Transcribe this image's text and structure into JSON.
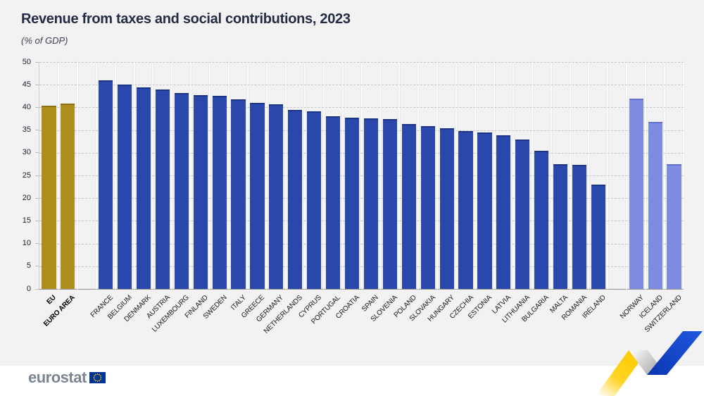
{
  "chart_data": {
    "type": "bar",
    "title": "Revenue from taxes and social contributions, 2023",
    "unit_label": "(% of GDP)",
    "xlabel": "",
    "ylabel": "",
    "ylim": [
      0,
      50
    ],
    "yticks": [
      0,
      5,
      10,
      15,
      20,
      25,
      30,
      35,
      40,
      45,
      50
    ],
    "grid": "horizontal-dashed",
    "legend": "none",
    "groups": [
      {
        "name": "eu-aggregates",
        "color_key": "eu_aggregate",
        "bold_labels": true,
        "categories": [
          "EU",
          "EURO AREA"
        ],
        "values": [
          40.0,
          40.6
        ],
        "bars": [
          {
            "label": "EU",
            "value": 40.0
          },
          {
            "label": "EURO AREA",
            "value": 40.6
          }
        ]
      },
      {
        "name": "eu-members",
        "color_key": "eu_member",
        "bold_labels": false,
        "categories": [
          "FRANCE",
          "BELGIUM",
          "DENMARK",
          "AUSTRIA",
          "LUXEMBOURG",
          "FINLAND",
          "SWEDEN",
          "ITALY",
          "GREECE",
          "GERMANY",
          "NETHERLANDS",
          "CYPRUS",
          "PORTUGAL",
          "CROATIA",
          "SPAIN",
          "SLOVENIA",
          "POLAND",
          "SLOVAKIA",
          "HUNGARY",
          "CZECHIA",
          "ESTONIA",
          "LATVIA",
          "LITHUANIA",
          "BULGARIA",
          "MALTA",
          "ROMANIA",
          "IRELAND"
        ],
        "values": [
          45.6,
          44.8,
          44.1,
          43.6,
          42.8,
          42.4,
          42.2,
          41.5,
          40.7,
          40.3,
          39.2,
          38.8,
          37.8,
          37.4,
          37.3,
          37.1,
          36.1,
          35.6,
          35.1,
          34.4,
          34.2,
          33.6,
          32.6,
          30.1,
          27.1,
          27.0,
          22.7
        ],
        "bars": [
          {
            "label": "FRANCE",
            "value": 45.6
          },
          {
            "label": "BELGIUM",
            "value": 44.8
          },
          {
            "label": "DENMARK",
            "value": 44.1
          },
          {
            "label": "AUSTRIA",
            "value": 43.6
          },
          {
            "label": "LUXEMBOURG",
            "value": 42.8
          },
          {
            "label": "FINLAND",
            "value": 42.4
          },
          {
            "label": "SWEDEN",
            "value": 42.2
          },
          {
            "label": "ITALY",
            "value": 41.5
          },
          {
            "label": "GREECE",
            "value": 40.7
          },
          {
            "label": "GERMANY",
            "value": 40.3
          },
          {
            "label": "NETHERLANDS",
            "value": 39.2
          },
          {
            "label": "CYPRUS",
            "value": 38.8
          },
          {
            "label": "PORTUGAL",
            "value": 37.8
          },
          {
            "label": "CROATIA",
            "value": 37.4
          },
          {
            "label": "SPAIN",
            "value": 37.3
          },
          {
            "label": "SLOVENIA",
            "value": 37.1
          },
          {
            "label": "POLAND",
            "value": 36.1
          },
          {
            "label": "SLOVAKIA",
            "value": 35.6
          },
          {
            "label": "HUNGARY",
            "value": 35.1
          },
          {
            "label": "CZECHIA",
            "value": 34.4
          },
          {
            "label": "ESTONIA",
            "value": 34.2
          },
          {
            "label": "LATVIA",
            "value": 33.6
          },
          {
            "label": "LITHUANIA",
            "value": 32.6
          },
          {
            "label": "BULGARIA",
            "value": 30.1
          },
          {
            "label": "MALTA",
            "value": 27.1
          },
          {
            "label": "ROMANIA",
            "value": 27.0
          },
          {
            "label": "IRELAND",
            "value": 22.7
          }
        ]
      },
      {
        "name": "non-eu",
        "color_key": "non_eu",
        "bold_labels": false,
        "categories": [
          "NORWAY",
          "ICELAND",
          "SWITZERLAND"
        ],
        "values": [
          41.6,
          36.5,
          27.1
        ],
        "bars": [
          {
            "label": "NORWAY",
            "value": 41.6
          },
          {
            "label": "ICELAND",
            "value": 36.5
          },
          {
            "label": "SWITZERLAND",
            "value": 27.1
          }
        ]
      }
    ]
  },
  "footer": {
    "logo_text": "eurostat"
  },
  "colors": {
    "background": "#f2f2f2",
    "footer_background": "#ffffff",
    "eu_aggregate": "#ae8e1d",
    "eu_aggregate_cap": "#8a7013",
    "eu_member": "#2a47ab",
    "eu_member_cap": "#1d3486",
    "non_eu": "#7d8ce1",
    "non_eu_cap": "#5e71cf",
    "title_text": "#232c44",
    "flag_blue": "#003399",
    "flag_star_yellow": "#ffcc00",
    "ribbon_yellow": "#ffcc00",
    "ribbon_silver": "#9b9b9b",
    "ribbon_blue": "#1448cc"
  }
}
